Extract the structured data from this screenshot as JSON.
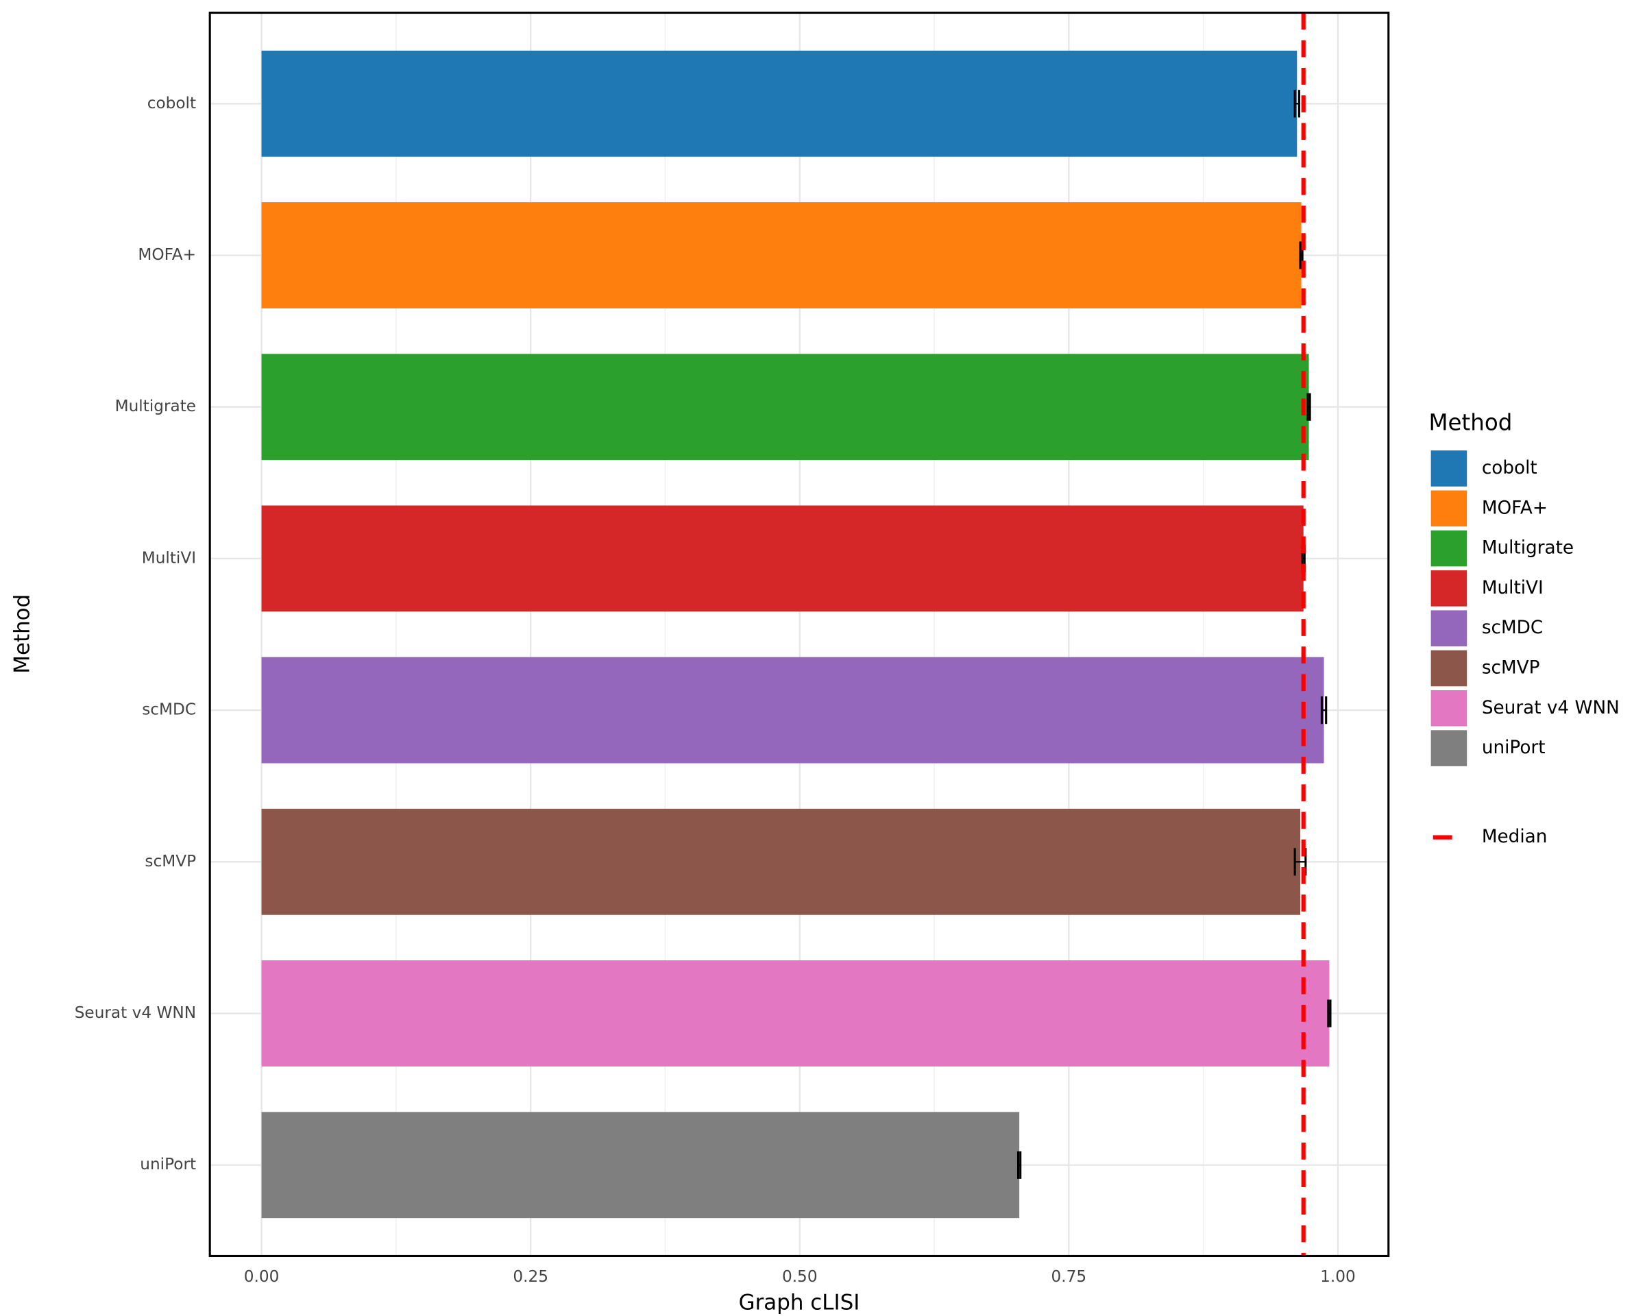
{
  "chart_data": {
    "type": "bar",
    "orientation": "horizontal",
    "x_label": "Graph cLISI",
    "y_label": "Method",
    "legend_title": "Method",
    "categories": [
      "cobolt",
      "MOFA+",
      "Multigrate",
      "MultiVI",
      "scMDC",
      "scMVP",
      "Seurat v4 WNN",
      "uniPort"
    ],
    "series": [
      {
        "name": "Graph cLISI",
        "values": [
          0.962,
          0.966,
          0.973,
          0.968,
          0.987,
          0.965,
          0.992,
          0.704
        ],
        "errors": [
          0.002,
          0.001,
          0.001,
          0.001,
          0.002,
          0.005,
          0.001,
          0.001
        ],
        "colors": [
          "#1f77b4",
          "#ff7f0e",
          "#2ca02c",
          "#d62728",
          "#9467bd",
          "#8c564b",
          "#e377c2",
          "#7f7f7f"
        ]
      }
    ],
    "median": {
      "label": "Median",
      "value": 0.968,
      "color": "#ff0000"
    },
    "xlim": [
      -0.048,
      1.047
    ],
    "xticks": [
      {
        "value": 0,
        "label": "0.00"
      },
      0.25,
      {
        "value": 0.5,
        "label": "0.50"
      },
      0.75,
      {
        "value": 1,
        "label": "1.00"
      }
    ],
    "grid": true
  }
}
